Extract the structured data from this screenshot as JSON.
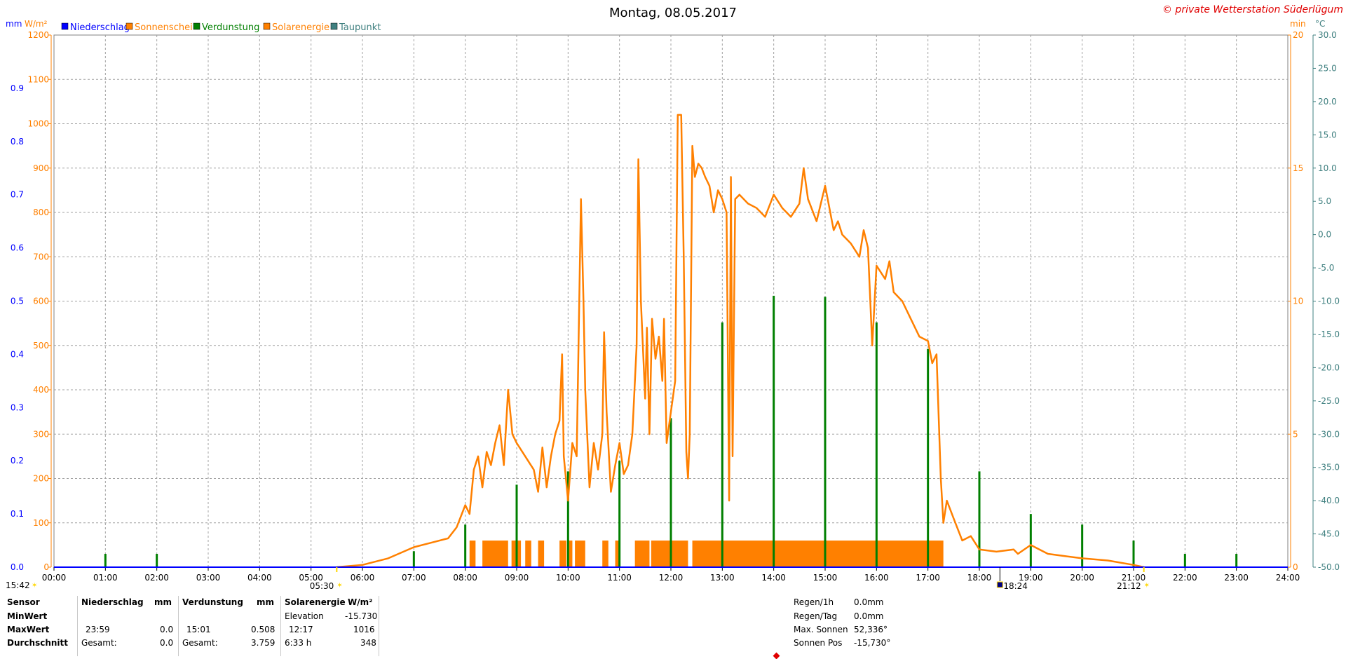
{
  "header": {
    "title": "Montag, 08.05.2017",
    "credit": "© private Wetterstation Süderlügum"
  },
  "legend": [
    {
      "label": "Niederschlag",
      "color": "#0000ff"
    },
    {
      "label": "Sonnenschei",
      "color": "#ff8000"
    },
    {
      "label": "Verdunstung",
      "color": "#007f00"
    },
    {
      "label": "Solarenergie",
      "color": "#ff8000"
    },
    {
      "label": "Taupunkt",
      "color": "#408080"
    }
  ],
  "axis_units": {
    "left_mm": "mm",
    "left_wm2": "W/m²",
    "right_min": "min",
    "right_c": "°C"
  },
  "chart_data": {
    "type": "line",
    "title": "Montag, 08.05.2017",
    "x": {
      "range": [
        "00:00",
        "24:00"
      ],
      "ticks": [
        "00:00",
        "01:00",
        "02:00",
        "03:00",
        "04:00",
        "05:00",
        "06:00",
        "07:00",
        "08:00",
        "09:00",
        "10:00",
        "11:00",
        "12:00",
        "13:00",
        "14:00",
        "15:00",
        "16:00",
        "17:00",
        "18:00",
        "19:00",
        "20:00",
        "21:00",
        "22:00",
        "23:00",
        "24:00"
      ]
    },
    "y_axes": {
      "mm": {
        "range": [
          0,
          1.0
        ],
        "ticks": [
          "0.0",
          "0.1",
          "0.2",
          "0.3",
          "0.4",
          "0.5",
          "0.6",
          "0.7",
          "0.8",
          "0.9"
        ],
        "color": "#0000ff"
      },
      "wm2": {
        "range": [
          0,
          1200
        ],
        "ticks": [
          "0",
          "100",
          "200",
          "300",
          "400",
          "500",
          "600",
          "700",
          "800",
          "900",
          "1000",
          "1100",
          "1200"
        ],
        "color": "#ff8000"
      },
      "min": {
        "range": [
          0,
          20
        ],
        "ticks": [
          "0",
          "5",
          "10",
          "15",
          "20"
        ],
        "color": "#ff8000"
      },
      "celsius": {
        "range": [
          -50,
          30
        ],
        "ticks": [
          "-50.0",
          "-45.0",
          "-40.0",
          "-35.0",
          "-30.0",
          "-25.0",
          "-20.0",
          "-15.0",
          "-10.0",
          "-5.0",
          "0.0",
          "5.0",
          "10.0",
          "15.0",
          "20.0",
          "25.0",
          "30.0"
        ],
        "color": "#408080"
      }
    },
    "grid": true,
    "legend_position": "top-left",
    "series": [
      {
        "name": "Solarenergie",
        "unit": "W/m²",
        "color": "#ff8000",
        "points": [
          [
            "05:30",
            0
          ],
          [
            "06:00",
            5
          ],
          [
            "06:30",
            20
          ],
          [
            "07:00",
            45
          ],
          [
            "07:20",
            55
          ],
          [
            "07:40",
            65
          ],
          [
            "07:50",
            90
          ],
          [
            "08:00",
            140
          ],
          [
            "08:05",
            120
          ],
          [
            "08:10",
            220
          ],
          [
            "08:15",
            250
          ],
          [
            "08:20",
            180
          ],
          [
            "08:25",
            260
          ],
          [
            "08:30",
            230
          ],
          [
            "08:35",
            280
          ],
          [
            "08:40",
            320
          ],
          [
            "08:45",
            230
          ],
          [
            "08:50",
            400
          ],
          [
            "08:55",
            300
          ],
          [
            "09:00",
            280
          ],
          [
            "09:10",
            250
          ],
          [
            "09:20",
            220
          ],
          [
            "09:25",
            170
          ],
          [
            "09:30",
            270
          ],
          [
            "09:35",
            180
          ],
          [
            "09:40",
            250
          ],
          [
            "09:45",
            300
          ],
          [
            "09:50",
            330
          ],
          [
            "09:53",
            480
          ],
          [
            "09:55",
            250
          ],
          [
            "10:00",
            150
          ],
          [
            "10:05",
            280
          ],
          [
            "10:10",
            250
          ],
          [
            "10:15",
            830
          ],
          [
            "10:18",
            600
          ],
          [
            "10:20",
            400
          ],
          [
            "10:25",
            180
          ],
          [
            "10:30",
            280
          ],
          [
            "10:35",
            220
          ],
          [
            "10:40",
            300
          ],
          [
            "10:42",
            530
          ],
          [
            "10:45",
            350
          ],
          [
            "10:50",
            170
          ],
          [
            "10:55",
            230
          ],
          [
            "11:00",
            280
          ],
          [
            "11:05",
            210
          ],
          [
            "11:10",
            230
          ],
          [
            "11:15",
            300
          ],
          [
            "11:20",
            500
          ],
          [
            "11:22",
            920
          ],
          [
            "11:25",
            600
          ],
          [
            "11:30",
            380
          ],
          [
            "11:32",
            540
          ],
          [
            "11:35",
            300
          ],
          [
            "11:38",
            560
          ],
          [
            "11:42",
            470
          ],
          [
            "11:46",
            520
          ],
          [
            "11:50",
            420
          ],
          [
            "11:52",
            560
          ],
          [
            "11:55",
            280
          ],
          [
            "12:00",
            350
          ],
          [
            "12:05",
            420
          ],
          [
            "12:08",
            1020
          ],
          [
            "12:12",
            1020
          ],
          [
            "12:15",
            700
          ],
          [
            "12:18",
            260
          ],
          [
            "12:20",
            200
          ],
          [
            "12:22",
            300
          ],
          [
            "12:25",
            950
          ],
          [
            "12:28",
            880
          ],
          [
            "12:32",
            910
          ],
          [
            "12:36",
            900
          ],
          [
            "12:40",
            880
          ],
          [
            "12:45",
            860
          ],
          [
            "12:50",
            800
          ],
          [
            "12:55",
            850
          ],
          [
            "13:00",
            830
          ],
          [
            "13:05",
            800
          ],
          [
            "13:08",
            150
          ],
          [
            "13:10",
            880
          ],
          [
            "13:12",
            250
          ],
          [
            "13:15",
            830
          ],
          [
            "13:20",
            840
          ],
          [
            "13:30",
            820
          ],
          [
            "13:40",
            810
          ],
          [
            "13:50",
            790
          ],
          [
            "14:00",
            840
          ],
          [
            "14:10",
            810
          ],
          [
            "14:20",
            790
          ],
          [
            "14:30",
            820
          ],
          [
            "14:35",
            900
          ],
          [
            "14:40",
            830
          ],
          [
            "14:50",
            780
          ],
          [
            "15:00",
            860
          ],
          [
            "15:10",
            760
          ],
          [
            "15:15",
            780
          ],
          [
            "15:20",
            750
          ],
          [
            "15:30",
            730
          ],
          [
            "15:40",
            700
          ],
          [
            "15:45",
            760
          ],
          [
            "15:50",
            720
          ],
          [
            "15:55",
            500
          ],
          [
            "16:00",
            680
          ],
          [
            "16:10",
            650
          ],
          [
            "16:15",
            690
          ],
          [
            "16:20",
            620
          ],
          [
            "16:30",
            600
          ],
          [
            "16:40",
            560
          ],
          [
            "16:50",
            520
          ],
          [
            "17:00",
            510
          ],
          [
            "17:05",
            460
          ],
          [
            "17:10",
            480
          ],
          [
            "17:15",
            200
          ],
          [
            "17:18",
            100
          ],
          [
            "17:22",
            150
          ],
          [
            "17:30",
            110
          ],
          [
            "17:40",
            60
          ],
          [
            "17:50",
            70
          ],
          [
            "18:00",
            40
          ],
          [
            "18:20",
            35
          ],
          [
            "18:40",
            40
          ],
          [
            "18:45",
            30
          ],
          [
            "19:00",
            50
          ],
          [
            "19:10",
            40
          ],
          [
            "19:20",
            30
          ],
          [
            "19:40",
            25
          ],
          [
            "20:00",
            20
          ],
          [
            "20:30",
            15
          ],
          [
            "21:00",
            5
          ],
          [
            "21:12",
            0
          ]
        ]
      },
      {
        "name": "Sonnenschei",
        "unit": "min",
        "color": "#ff8000",
        "blocks": [
          [
            "08:05",
            "08:12",
            1
          ],
          [
            "08:20",
            "08:50",
            1
          ],
          [
            "08:54",
            "09:05",
            1
          ],
          [
            "09:10",
            "09:17",
            1
          ],
          [
            "09:25",
            "09:32",
            1
          ],
          [
            "09:50",
            "09:58",
            1
          ],
          [
            "10:00",
            "10:05",
            1
          ],
          [
            "10:08",
            "10:20",
            1
          ],
          [
            "10:40",
            "10:47",
            1
          ],
          [
            "10:55",
            "11:00",
            1
          ],
          [
            "11:18",
            "11:35",
            1
          ],
          [
            "11:37",
            "12:20",
            1
          ],
          [
            "12:25",
            "17:18",
            1
          ]
        ]
      },
      {
        "name": "Verdunstung",
        "unit": "mm",
        "color": "#007f00",
        "spikes": [
          [
            "01:00",
            0.025
          ],
          [
            "02:00",
            0.025
          ],
          [
            "07:00",
            0.03
          ],
          [
            "08:00",
            0.08
          ],
          [
            "09:00",
            0.155
          ],
          [
            "10:00",
            0.18
          ],
          [
            "11:00",
            0.2
          ],
          [
            "12:00",
            0.28
          ],
          [
            "13:00",
            0.46
          ],
          [
            "14:00",
            0.51
          ],
          [
            "15:00",
            0.508
          ],
          [
            "16:00",
            0.46
          ],
          [
            "17:00",
            0.41
          ],
          [
            "18:00",
            0.18
          ],
          [
            "19:00",
            0.1
          ],
          [
            "20:00",
            0.08
          ],
          [
            "21:00",
            0.05
          ],
          [
            "22:00",
            0.025
          ],
          [
            "23:00",
            0.025
          ]
        ]
      },
      {
        "name": "Niederschlag",
        "unit": "mm",
        "color": "#0000ff",
        "values": [
          0
        ]
      }
    ]
  },
  "markers": {
    "start_time": "15:42",
    "sunrise": "05:30",
    "sunset": "21:12",
    "event": "18:24"
  },
  "stats": {
    "headers": {
      "sensor": "Sensor",
      "niederschlag": "Niederschlag",
      "mm1": "mm",
      "verdunstung": "Verdunstung",
      "mm2": "mm",
      "solar": "Solarenergie",
      "solar_unit": "W/m²"
    },
    "rows": [
      {
        "label": "MinWert",
        "n_time": "",
        "n_val": "",
        "v_time": "",
        "v_val": "",
        "s_time": "Elevation",
        "s_val": "-15.730"
      },
      {
        "label": "MaxWert",
        "n_time": "23:59",
        "n_val": "0.0",
        "v_time": "15:01",
        "v_val": "0.508",
        "s_time": "12:17",
        "s_val": "1016"
      },
      {
        "label": "Durchschnitt",
        "n_time": "Gesamt:",
        "n_val": "0.0",
        "v_time": "Gesamt:",
        "v_val": "3.759",
        "s_time": "6:33 h",
        "s_val": "348"
      }
    ],
    "side": [
      {
        "label": "Regen/1h",
        "value": "0.0mm"
      },
      {
        "label": "Regen/Tag",
        "value": "0.0mm"
      },
      {
        "label": "Max. Sonnen",
        "value": "52,336°"
      },
      {
        "label": "Sonnen Pos",
        "value": "-15,730°"
      }
    ]
  }
}
